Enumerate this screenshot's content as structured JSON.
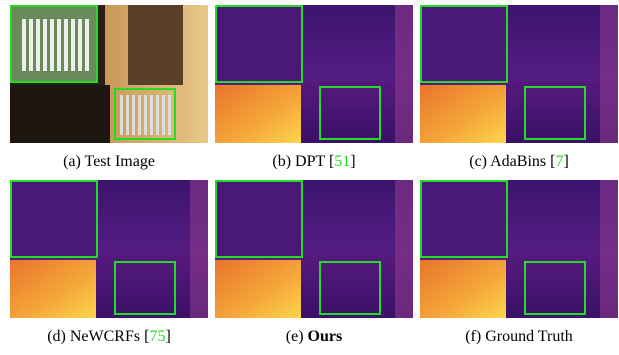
{
  "figure": {
    "panels": [
      {
        "caption": [
          {
            "text": "(a) Test Image"
          }
        ]
      },
      {
        "caption": [
          {
            "text": "(b) DPT ["
          },
          {
            "text": "51",
            "style": "cite"
          },
          {
            "text": "]"
          }
        ]
      },
      {
        "caption": [
          {
            "text": "(c) AdaBins ["
          },
          {
            "text": "7",
            "style": "cite"
          },
          {
            "text": "]"
          }
        ]
      },
      {
        "caption": [
          {
            "text": "(d) NeWCRFs ["
          },
          {
            "text": "75",
            "style": "cite"
          },
          {
            "text": "]"
          }
        ]
      },
      {
        "caption": [
          {
            "text": "(e) "
          },
          {
            "text": "Ours",
            "style": "bold"
          }
        ]
      },
      {
        "caption": [
          {
            "text": "(f) Ground Truth"
          }
        ]
      }
    ]
  }
}
